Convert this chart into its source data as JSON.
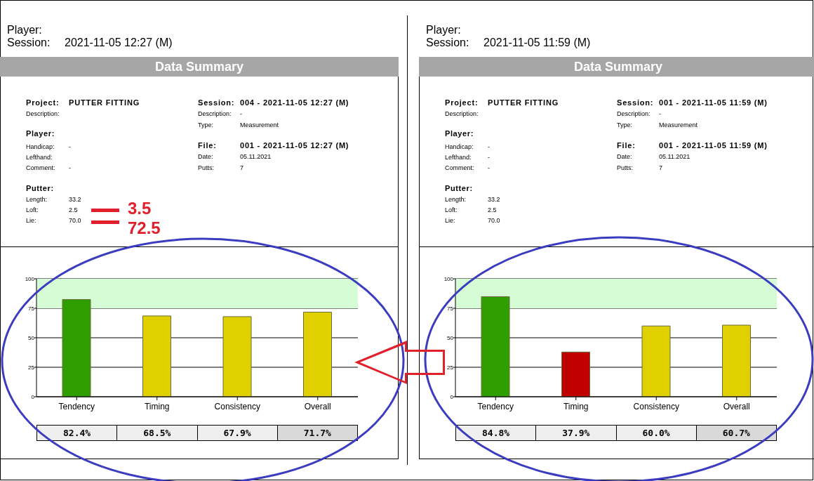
{
  "chart_data": [
    {
      "type": "other",
      "title": "Data Summary",
      "annotations": [
        "Player:",
        "Session:\t2021-11-05 12:27 (M)",
        "Project:\tPUTTER FITTING",
        "Description:",
        "Player:",
        "Handicap:\t-",
        "Lefthand:",
        "Comment:\t-",
        "Putter:",
        "Length:\t33.2",
        "Loft:\t2.5",
        "Lie:\t70.0",
        "Session:\t004 - 2021-11-05 12:27 (M)",
        "Description:\t-",
        "Type:\tMeasurement",
        "File:\t001 - 2021-11-05 12:27 (M)",
        "Date:\t05.11.2021",
        "Putts:\t7",
        "3.5",
        "72.5"
      ]
    },
    {
      "type": "bar",
      "categories": [
        "Tendency",
        "Timing",
        "Consistency",
        "Overall"
      ],
      "values": [
        82.4,
        68.5,
        67.9,
        71.7
      ],
      "colors": [
        "#2e9e00",
        "#e0d000",
        "#e0d000",
        "#e0d000"
      ],
      "ylim": [
        0,
        100
      ],
      "yticks": [
        0,
        25,
        50,
        75,
        100
      ],
      "grid": "y",
      "bands": [
        {
          "axis": "y",
          "from": 75,
          "to": 100,
          "color": "#d6fcd6"
        }
      ],
      "value_labels": [
        "82.4%",
        "68.5%",
        "67.9%",
        "71.7%"
      ]
    },
    {
      "type": "other",
      "title": "Data Summary",
      "annotations": [
        "Player:",
        "Session:\t2021-11-05 11:59 (M)",
        "Project:\tPUTTER FITTING",
        "Description:",
        "Player:",
        "Handicap:\t-",
        "Lefthand:\t-",
        "Comment:\t-",
        "Putter:",
        "Length:\t33.2",
        "Loft:\t2.5",
        "Lie:\t70.0",
        "Session:\t001 - 2021-11-05 11:59 (M)",
        "Description:\t-",
        "Type:\tMeasurement",
        "File:\t001 - 2021-11-05 11:59 (M)",
        "Date:\t05.11.2021",
        "Putts:\t7"
      ]
    },
    {
      "type": "bar",
      "categories": [
        "Tendency",
        "Timing",
        "Consistency",
        "Overall"
      ],
      "values": [
        84.8,
        37.9,
        60.0,
        60.7
      ],
      "colors": [
        "#2e9e00",
        "#c00000",
        "#e0d000",
        "#e0d000"
      ],
      "ylim": [
        0,
        100
      ],
      "yticks": [
        0,
        25,
        50,
        75,
        100
      ],
      "grid": "y",
      "bands": [
        {
          "axis": "y",
          "from": 75,
          "to": 100,
          "color": "#d6fcd6"
        }
      ],
      "value_labels": [
        "84.8%",
        "37.9%",
        "60.0%",
        "60.7%"
      ]
    }
  ]
}
